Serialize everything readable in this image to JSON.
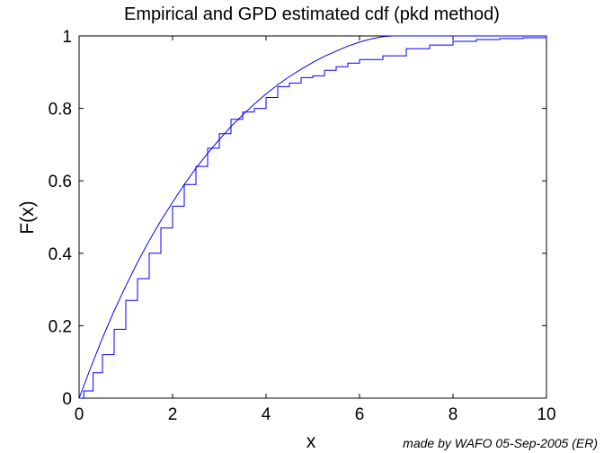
{
  "chart_data": {
    "type": "line",
    "title": "Empirical and GPD estimated cdf (pkd method)",
    "xlabel": "x",
    "ylabel": "F(x)",
    "xlim": [
      0,
      10
    ],
    "ylim": [
      0,
      1
    ],
    "x_ticks": [
      "0",
      "2",
      "4",
      "6",
      "8",
      "10"
    ],
    "y_ticks": [
      "0",
      "0.2",
      "0.4",
      "0.6",
      "0.8",
      "1"
    ],
    "line_color": "#0000ff",
    "grid": false,
    "legend": "none",
    "series": [
      {
        "kind": "estimated",
        "x": [
          0,
          0.25,
          0.5,
          0.75,
          1.0,
          1.25,
          1.5,
          1.75,
          2.0,
          2.25,
          2.5,
          2.75,
          3.0,
          3.25,
          3.5,
          3.75,
          4.0,
          4.25,
          4.5,
          4.75,
          5.0,
          5.25,
          5.5,
          5.75,
          6.0,
          6.25,
          6.5,
          6.7
        ],
        "y": [
          0,
          0.085,
          0.166,
          0.241,
          0.31,
          0.375,
          0.435,
          0.49,
          0.541,
          0.59,
          0.635,
          0.676,
          0.714,
          0.75,
          0.782,
          0.812,
          0.84,
          0.865,
          0.888,
          0.908,
          0.927,
          0.944,
          0.958,
          0.972,
          0.983,
          0.992,
          0.998,
          1.0
        ]
      },
      {
        "kind": "empirical",
        "x": [
          0,
          0.1,
          0.3,
          0.5,
          0.75,
          1.0,
          1.25,
          1.5,
          1.75,
          2.0,
          2.25,
          2.5,
          2.75,
          3.0,
          3.25,
          3.5,
          3.75,
          4.0,
          4.25,
          4.5,
          4.75,
          5.0,
          5.25,
          5.5,
          5.75,
          6.0,
          6.5,
          7.0,
          7.5,
          8.0,
          8.5,
          9.0,
          9.5,
          10.0
        ],
        "y": [
          0,
          0.02,
          0.07,
          0.12,
          0.19,
          0.27,
          0.33,
          0.4,
          0.47,
          0.53,
          0.59,
          0.64,
          0.69,
          0.73,
          0.77,
          0.79,
          0.8,
          0.83,
          0.86,
          0.87,
          0.885,
          0.89,
          0.905,
          0.915,
          0.925,
          0.935,
          0.945,
          0.965,
          0.975,
          0.985,
          0.99,
          0.993,
          0.995,
          1.0
        ]
      }
    ]
  },
  "footer": {
    "credit": "made by WAFO 05-Sep-2005 (ER)"
  }
}
